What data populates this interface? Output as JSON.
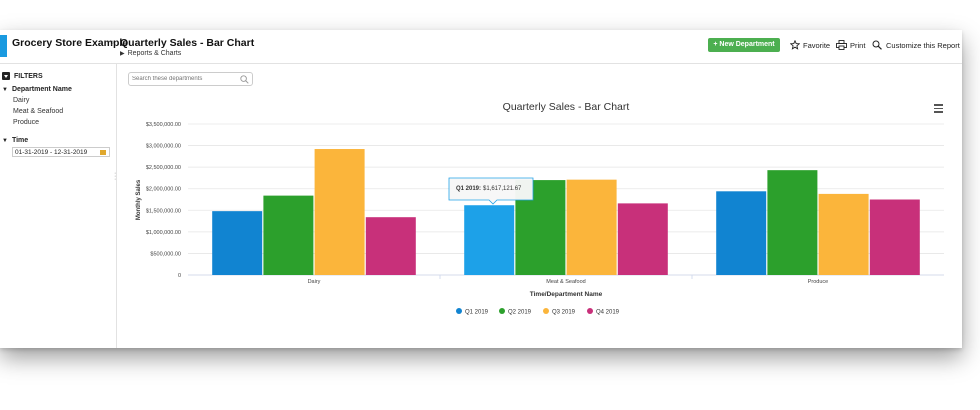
{
  "header": {
    "app_title": "Grocery Store Example",
    "page_title": "Quarterly Sales - Bar Chart",
    "breadcrumb": "Reports & Charts",
    "new_department_label": "+ New Department",
    "favorite_label": "Favorite",
    "print_label": "Print",
    "customize_label": "Customize this Report"
  },
  "sidebar": {
    "filters_label": "FILTERS",
    "department_group_label": "Department Name",
    "departments": [
      "Dairy",
      "Meat & Seafood",
      "Produce"
    ],
    "time_group_label": "Time",
    "time_value": "01-31-2019 - 12-31-2019"
  },
  "search": {
    "placeholder": "Search these departments"
  },
  "tooltip": {
    "label": "Q1 2019:",
    "value": "$1,617,121.67"
  },
  "colors": {
    "q1": "#1184d1",
    "q2": "#2ca02c",
    "q3": "#fbb53b",
    "q4": "#c8307a",
    "highlight": "#1da1e8",
    "accent": "#1a9ae0",
    "new_button": "#4caf50"
  },
  "chart_data": {
    "type": "bar",
    "title": "Quarterly Sales - Bar Chart",
    "xlabel": "Time/Department Name",
    "ylabel": "Monthly Sales",
    "categories": [
      "Dairy",
      "Meat & Seafood",
      "Produce"
    ],
    "series": [
      {
        "name": "Q1 2019",
        "values": [
          1480000,
          1617121.67,
          1940000
        ]
      },
      {
        "name": "Q2 2019",
        "values": [
          1840000,
          2200000,
          2430000
        ]
      },
      {
        "name": "Q3 2019",
        "values": [
          2920000,
          2210000,
          1880000
        ]
      },
      {
        "name": "Q4 2019",
        "values": [
          1340000,
          1660000,
          1750000
        ]
      }
    ],
    "ylim": [
      0,
      3500000
    ],
    "yticks": [
      "0",
      "$500,000.00",
      "$1,000,000.00",
      "$1,500,000.00",
      "$2,000,000.00",
      "$2,500,000.00",
      "$3,000,000.00",
      "$3,500,000.00"
    ],
    "grid": true,
    "legend": "bottom"
  }
}
